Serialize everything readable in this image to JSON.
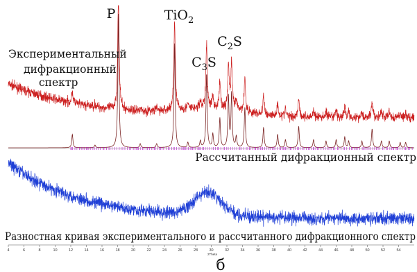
{
  "chart_data": {
    "type": "line",
    "xlabel": "2Theta",
    "xlim": [
      4,
      56
    ],
    "x_ticks": [
      "4",
      "6",
      "8",
      "10",
      "12",
      "14",
      "16",
      "18",
      "20",
      "22",
      "24",
      "26",
      "28",
      "30",
      "32",
      "34",
      "36",
      "38",
      "40",
      "42",
      "44",
      "46",
      "48",
      "50",
      "52",
      "54"
    ],
    "grid": false,
    "legend": "none",
    "colors": {
      "experimental": "#cc1f1f",
      "calculated": "#7a2323",
      "markers": "#b000c8",
      "difference": "#1f3fd6"
    },
    "labels": {
      "experimental": "Экспериментальный дифракционный спектр",
      "calculated": "Рассчитанный дифракционный спектр",
      "difference": "Разностная кривая экспериментального и рассчитанного дифракционного спектр"
    },
    "phase_labels": [
      {
        "main": "P",
        "sub": "",
        "after": "",
        "two_theta": 18.1
      },
      {
        "main": "TiO",
        "sub": "2",
        "after": "",
        "two_theta": 25.3
      },
      {
        "main": "C",
        "sub": "3",
        "after": "S",
        "two_theta": 29.4
      },
      {
        "main": "C",
        "sub": "2",
        "after": "S",
        "two_theta": 32.5
      }
    ],
    "calculated_peaks": [
      {
        "two_theta": 12.2,
        "rel": 0.1
      },
      {
        "two_theta": 15.1,
        "rel": 0.02
      },
      {
        "two_theta": 18.1,
        "rel": 1.0
      },
      {
        "two_theta": 20.9,
        "rel": 0.03
      },
      {
        "two_theta": 23.0,
        "rel": 0.03
      },
      {
        "two_theta": 25.3,
        "rel": 0.78
      },
      {
        "two_theta": 27.0,
        "rel": 0.04
      },
      {
        "two_theta": 28.6,
        "rel": 0.05
      },
      {
        "two_theta": 29.4,
        "rel": 0.55
      },
      {
        "two_theta": 30.2,
        "rel": 0.1
      },
      {
        "two_theta": 31.1,
        "rel": 0.22
      },
      {
        "two_theta": 32.2,
        "rel": 0.38
      },
      {
        "two_theta": 32.6,
        "rel": 0.4
      },
      {
        "two_theta": 33.2,
        "rel": 0.08
      },
      {
        "two_theta": 34.3,
        "rel": 0.3
      },
      {
        "two_theta": 36.7,
        "rel": 0.15
      },
      {
        "two_theta": 38.5,
        "rel": 0.1
      },
      {
        "two_theta": 39.5,
        "rel": 0.06
      },
      {
        "two_theta": 41.2,
        "rel": 0.16
      },
      {
        "two_theta": 43.1,
        "rel": 0.06
      },
      {
        "two_theta": 44.7,
        "rel": 0.05
      },
      {
        "two_theta": 46.0,
        "rel": 0.06
      },
      {
        "two_theta": 47.1,
        "rel": 0.08
      },
      {
        "two_theta": 47.6,
        "rel": 0.05
      },
      {
        "two_theta": 49.3,
        "rel": 0.05
      },
      {
        "two_theta": 50.6,
        "rel": 0.14
      },
      {
        "two_theta": 51.8,
        "rel": 0.05
      },
      {
        "two_theta": 52.8,
        "rel": 0.05
      },
      {
        "two_theta": 54.2,
        "rel": 0.04
      },
      {
        "two_theta": 54.9,
        "rel": 0.04
      }
    ],
    "difference_hump": {
      "two_theta": 29.5,
      "rel": 0.35
    }
  },
  "caption": "б"
}
